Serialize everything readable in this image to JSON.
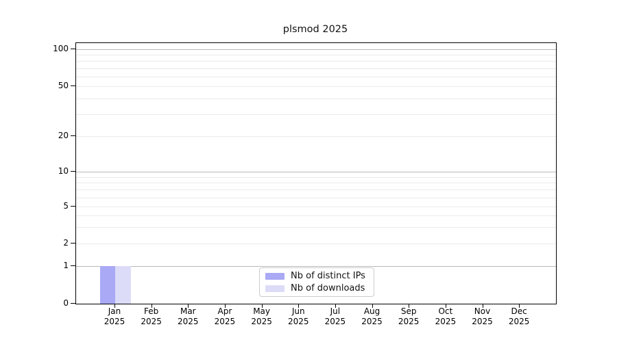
{
  "chart_data": {
    "type": "bar",
    "title": "plsmod 2025",
    "categories": [
      "Jan",
      "Feb",
      "Mar",
      "Apr",
      "May",
      "Jun",
      "Jul",
      "Aug",
      "Sep",
      "Oct",
      "Nov",
      "Dec"
    ],
    "year": "2025",
    "series": [
      {
        "name": "Nb of distinct IPs",
        "color": "#a9a9f5",
        "values": [
          1,
          0,
          0,
          0,
          0,
          0,
          0,
          0,
          0,
          0,
          0,
          0
        ]
      },
      {
        "name": "Nb of downloads",
        "color": "#dcdcf8",
        "values": [
          1,
          0,
          0,
          0,
          0,
          0,
          0,
          0,
          0,
          0,
          0,
          0
        ]
      }
    ],
    "yticks": [
      0,
      1,
      2,
      5,
      10,
      20,
      50,
      100
    ],
    "yscale": "pseudo-log (linear 0-1, log above)",
    "ylim": [
      0,
      112
    ],
    "xlabel": "",
    "ylabel": "",
    "legend_position": "lower center",
    "grid": "horizontal only; major lines at 1, 10, 100; log minors 2-9, 20-90"
  }
}
